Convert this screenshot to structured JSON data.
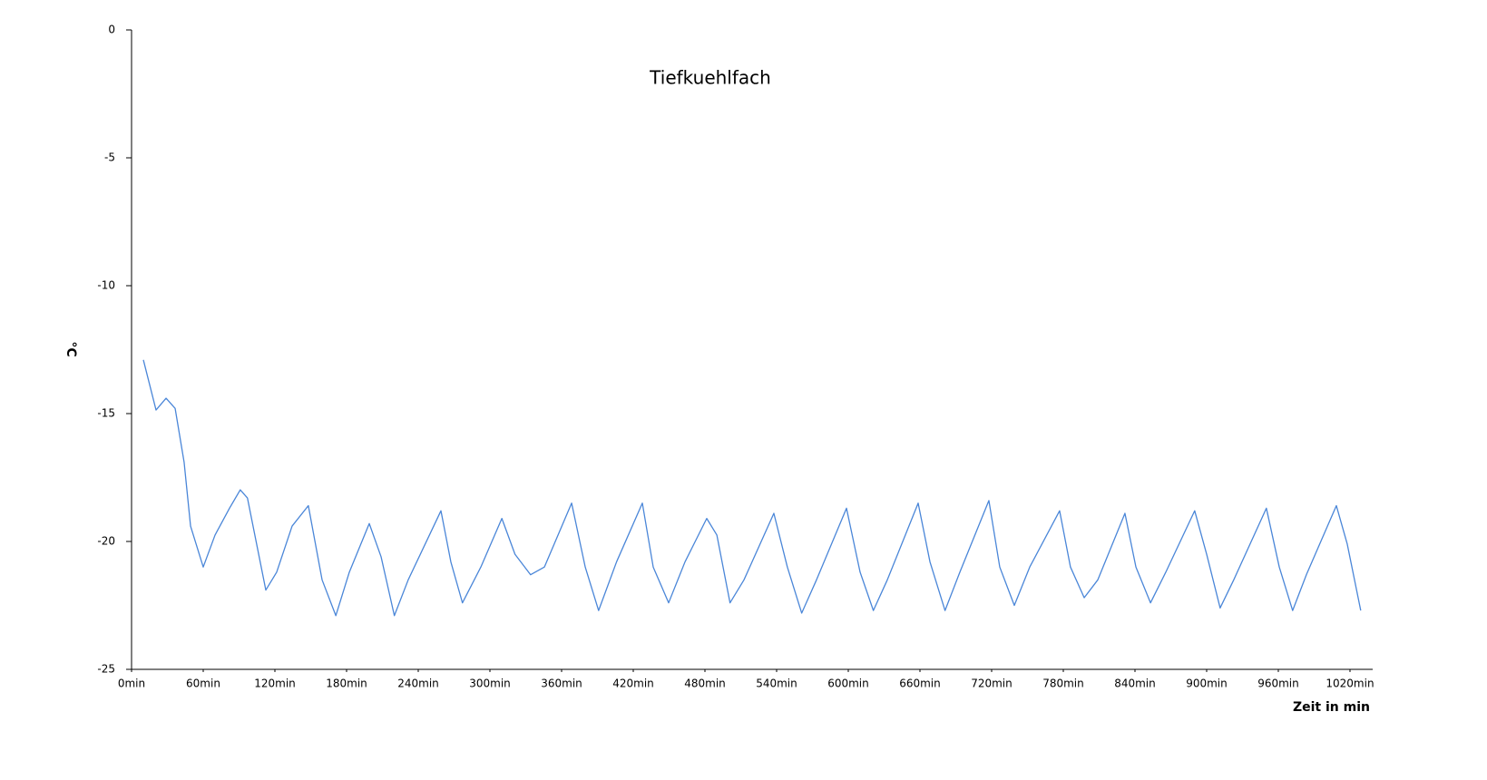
{
  "chart_data": {
    "type": "line",
    "title": "Tiefkuehlfach",
    "y_label": "°C",
    "x_label": "Zeit in min",
    "xlim": [
      0,
      1039
    ],
    "ylim": [
      -25,
      0
    ],
    "yticks": [
      0,
      -5,
      -10,
      -15,
      -20,
      -25
    ],
    "xticks": [
      {
        "value": 0,
        "label": "0min"
      },
      {
        "value": 60,
        "label": "60min"
      },
      {
        "value": 120,
        "label": "120min"
      },
      {
        "value": 180,
        "label": "180min"
      },
      {
        "value": 240,
        "label": "240min"
      },
      {
        "value": 300,
        "label": "300min"
      },
      {
        "value": 360,
        "label": "360min"
      },
      {
        "value": 420,
        "label": "420min"
      },
      {
        "value": 480,
        "label": "480min"
      },
      {
        "value": 540,
        "label": "540min"
      },
      {
        "value": 600,
        "label": "600min"
      },
      {
        "value": 660,
        "label": "660min"
      },
      {
        "value": 720,
        "label": "720min"
      },
      {
        "value": 780,
        "label": "780min"
      },
      {
        "value": 840,
        "label": "840min"
      },
      {
        "value": 900,
        "label": "900min"
      },
      {
        "value": 960,
        "label": "960min"
      },
      {
        "value": 1020,
        "label": "1020min"
      }
    ],
    "grid": false,
    "color": "#4a86d8",
    "x": [
      9.9,
      20.5,
      28.9,
      36.5,
      44,
      49.4,
      60,
      69.9,
      82,
      91,
      97,
      112.4,
      121.5,
      134.4,
      148,
      159.5,
      171,
      182.3,
      199,
      208.9,
      220,
      231.6,
      259,
      267.3,
      277,
      292.4,
      310,
      321,
      334,
      345.6,
      368.4,
      379.8,
      391,
      406,
      427.6,
      436.7,
      449.6,
      463.3,
      481.5,
      490,
      501,
      512.7,
      537.7,
      549,
      561,
      573.4,
      598.5,
      609.9,
      621,
      632.7,
      658.5,
      668.4,
      681,
      693.4,
      717.7,
      726.8,
      739,
      751.9,
      776.9,
      786,
      797.5,
      808.9,
      831.6,
      840.8,
      853,
      865.8,
      890,
      900,
      911.3,
      922.7,
      950,
      960.8,
      972,
      983.5,
      1008.6,
      1017.7,
      1029
    ],
    "values": [
      -12.9,
      -14.86,
      -14.4,
      -14.8,
      -16.9,
      -19.4,
      -21.0,
      -19.75,
      -18.7,
      -17.98,
      -18.3,
      -21.9,
      -21.2,
      -19.4,
      -18.6,
      -21.5,
      -22.9,
      -21.2,
      -19.3,
      -20.6,
      -22.9,
      -21.5,
      -18.8,
      -20.8,
      -22.4,
      -21.0,
      -19.1,
      -20.5,
      -21.3,
      -21.0,
      -18.5,
      -21.0,
      -22.7,
      -20.8,
      -18.5,
      -21.0,
      -22.4,
      -20.8,
      -19.1,
      -19.75,
      -22.4,
      -21.5,
      -18.9,
      -21.0,
      -22.8,
      -21.5,
      -18.7,
      -21.2,
      -22.7,
      -21.5,
      -18.5,
      -20.8,
      -22.7,
      -21.2,
      -18.4,
      -21.0,
      -22.5,
      -21.0,
      -18.8,
      -21.0,
      -22.2,
      -21.5,
      -18.9,
      -21.0,
      -22.4,
      -21.2,
      -18.8,
      -20.5,
      -22.6,
      -21.5,
      -18.7,
      -21.0,
      -22.7,
      -21.3,
      -18.6,
      -20.1,
      -22.7
    ]
  }
}
